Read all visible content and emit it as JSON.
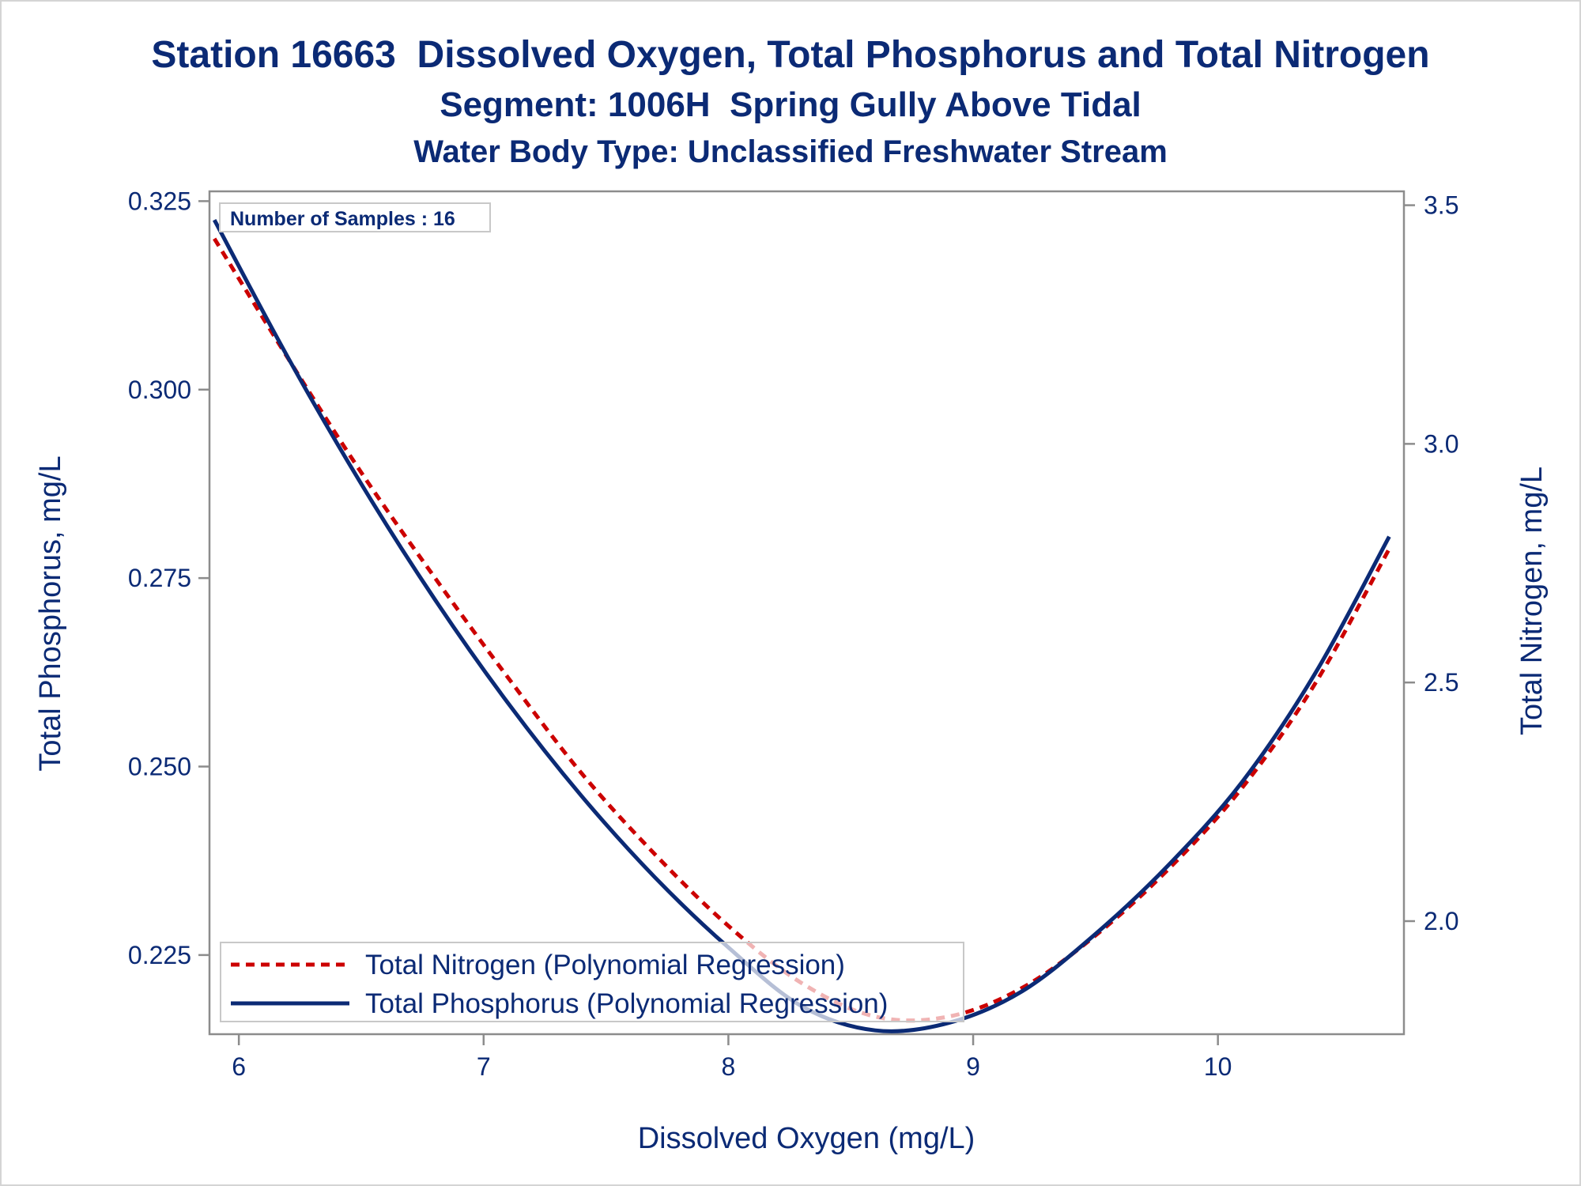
{
  "chart_data": {
    "type": "line",
    "title": "Station 16663  Dissolved Oxygen, Total Phosphorus and Total Nitrogen",
    "subtitle_1": "Segment: 1006H  Spring Gully Above Tidal",
    "subtitle_2": "Water Body Type: Unclassified Freshwater Stream",
    "xlabel": "Dissolved Oxygen (mg/L)",
    "ylabel_left": "Total Phosphorus, mg/L",
    "ylabel_right": "Total Nitrogen, mg/L",
    "xlim": [
      5.88,
      10.76
    ],
    "ylim_left": [
      0.2145,
      0.3263
    ],
    "ylim_right": [
      1.7631,
      3.5291
    ],
    "x_ticks": [
      "6",
      "7",
      "8",
      "9",
      "10"
    ],
    "y_left_ticks": [
      "0.325",
      "0.300",
      "0.275",
      "0.250",
      "0.225"
    ],
    "y_right_ticks": [
      "3.5",
      "3.0",
      "2.5",
      "2.0"
    ],
    "inset_label": "Number of Samples : 16",
    "legend_position": "bottom-left",
    "grid": false,
    "colors": {
      "nitrogen": "#cc0000",
      "phosphorus": "#0b2a75",
      "text": "#0b2a75",
      "axis": "#8c8c8c"
    },
    "series": [
      {
        "name": "Total Nitrogen (Polynomial Regression)",
        "axis": "right",
        "style": "dashed",
        "x": [
          5.9,
          6.2,
          6.5,
          6.8,
          7.1,
          7.4,
          7.7,
          8.0,
          8.3,
          8.6,
          8.9,
          9.2,
          9.5,
          9.8,
          10.1,
          10.4,
          10.7
        ],
        "values": [
          3.43,
          3.18,
          2.94,
          2.72,
          2.51,
          2.31,
          2.14,
          1.99,
          1.87,
          1.8,
          1.8,
          1.86,
          1.97,
          2.11,
          2.28,
          2.5,
          2.78
        ]
      },
      {
        "name": "Total Phosphorus (Polynomial Regression)",
        "axis": "left",
        "style": "solid",
        "x": [
          5.9,
          6.2,
          6.5,
          6.8,
          7.1,
          7.4,
          7.7,
          8.0,
          8.3,
          8.6,
          8.9,
          9.2,
          9.5,
          9.8,
          10.1,
          10.4,
          10.7
        ],
        "values": [
          0.3225,
          0.3043,
          0.2875,
          0.2722,
          0.2584,
          0.2461,
          0.2353,
          0.226,
          0.2182,
          0.215,
          0.216,
          0.2202,
          0.2278,
          0.237,
          0.248,
          0.2625,
          0.2805
        ]
      }
    ]
  }
}
